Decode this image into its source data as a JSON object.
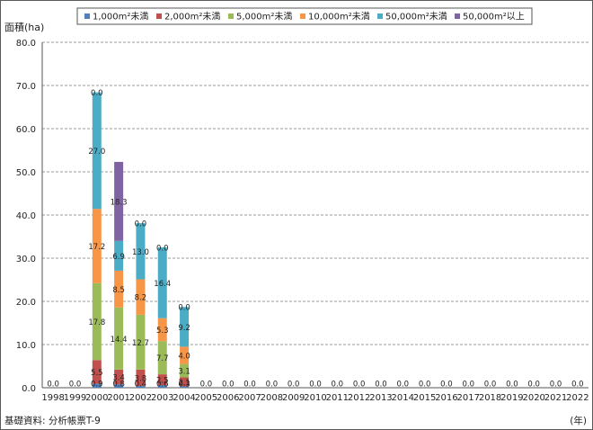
{
  "chart_data": {
    "type": "bar",
    "stacked": true,
    "ylabel": "面積(ha)",
    "xlabel": "(年)",
    "ylim": [
      0,
      80
    ],
    "yticks": [
      "0.0",
      "10.0",
      "20.0",
      "30.0",
      "40.0",
      "50.0",
      "60.0",
      "70.0",
      "80.0"
    ],
    "grid": "horizontal dashed",
    "legend_position": "top",
    "categories": [
      "1998",
      "1999",
      "2000",
      "2001",
      "2002",
      "2003",
      "2004",
      "2005",
      "2006",
      "2007",
      "2008",
      "2009",
      "2010",
      "2011",
      "2012",
      "2013",
      "2014",
      "2015",
      "2016",
      "2017",
      "2018",
      "2019",
      "2020",
      "2021",
      "2022"
    ],
    "series": [
      {
        "name": "1,000m²未満",
        "color": "#4f81bd",
        "values": [
          0,
          0,
          0.9,
          0.8,
          0.4,
          0.6,
          0.3,
          0,
          0,
          0,
          0,
          0,
          0,
          0,
          0,
          0,
          0,
          0,
          0,
          0,
          0,
          0,
          0,
          0,
          0
        ],
        "labels": [
          "0.0",
          "0.0",
          "0.9",
          "0.8",
          "0.4",
          "0.6",
          "0.3",
          "0.0",
          "0.0",
          "0.0",
          "0.0",
          "0.0",
          "0.0",
          "0.0",
          "0.0",
          "0.0",
          "0.0",
          "0.0",
          "0.0",
          "0.0",
          "0.0",
          "0.0",
          "0.0",
          "0.0",
          "0.0"
        ]
      },
      {
        "name": "2,000m²未満",
        "color": "#c0504d",
        "values": [
          0,
          0,
          5.5,
          3.4,
          3.8,
          2.5,
          2.1,
          0,
          0,
          0,
          0,
          0,
          0,
          0,
          0,
          0,
          0,
          0,
          0,
          0,
          0,
          0,
          0,
          0,
          0
        ],
        "labels": [
          "",
          "",
          "5.5",
          "3.4",
          "3.8",
          "2.5",
          "2.1",
          "",
          "",
          "",
          "",
          "",
          "",
          "",
          "",
          "",
          "",
          "",
          "",
          "",
          "",
          "",
          "",
          "",
          ""
        ]
      },
      {
        "name": "5,000m²未満",
        "color": "#9bbb59",
        "values": [
          0,
          0,
          17.8,
          14.4,
          12.7,
          7.7,
          3.1,
          0,
          0,
          0,
          0,
          0,
          0,
          0,
          0,
          0,
          0,
          0,
          0,
          0,
          0,
          0,
          0,
          0,
          0
        ],
        "labels": [
          "",
          "",
          "17.8",
          "14.4",
          "12.7",
          "7.7",
          "3.1",
          "",
          "",
          "",
          "",
          "",
          "",
          "",
          "",
          "",
          "",
          "",
          "",
          "",
          "",
          "",
          "",
          "",
          ""
        ]
      },
      {
        "name": "10,000m²未満",
        "color": "#f79646",
        "values": [
          0,
          0,
          17.2,
          8.5,
          8.2,
          5.3,
          4.0,
          0,
          0,
          0,
          0,
          0,
          0,
          0,
          0,
          0,
          0,
          0,
          0,
          0,
          0,
          0,
          0,
          0,
          0
        ],
        "labels": [
          "",
          "",
          "17.2",
          "8.5",
          "8.2",
          "5.3",
          "4.0",
          "",
          "",
          "",
          "",
          "",
          "",
          "",
          "",
          "",
          "",
          "",
          "",
          "",
          "",
          "",
          "",
          "",
          ""
        ]
      },
      {
        "name": "50,000m²未満",
        "color": "#4bacc6",
        "values": [
          0,
          0,
          27.0,
          6.9,
          13.0,
          16.4,
          9.2,
          0,
          0,
          0,
          0,
          0,
          0,
          0,
          0,
          0,
          0,
          0,
          0,
          0,
          0,
          0,
          0,
          0,
          0
        ],
        "labels": [
          "",
          "",
          "27.0",
          "6.9",
          "13.0",
          "16.4",
          "9.2",
          "",
          "",
          "",
          "",
          "",
          "",
          "",
          "",
          "",
          "",
          "",
          "",
          "",
          "",
          "",
          "",
          "",
          ""
        ]
      },
      {
        "name": "50,000m²以上",
        "color": "#8064a2",
        "values": [
          0,
          0,
          0,
          18.3,
          0,
          0,
          0,
          0,
          0,
          0,
          0,
          0,
          0,
          0,
          0,
          0,
          0,
          0,
          0,
          0,
          0,
          0,
          0,
          0,
          0
        ],
        "labels": [
          "",
          "",
          "0.0",
          "18.3",
          "0.0",
          "0.0",
          "0.0",
          "",
          "",
          "",
          "",
          "",
          "",
          "",
          "",
          "",
          "",
          "",
          "",
          "",
          "",
          "",
          "",
          "",
          ""
        ]
      }
    ]
  },
  "footer": {
    "source": "基礎資料: 分析帳票T-9",
    "unit": "(年)"
  }
}
